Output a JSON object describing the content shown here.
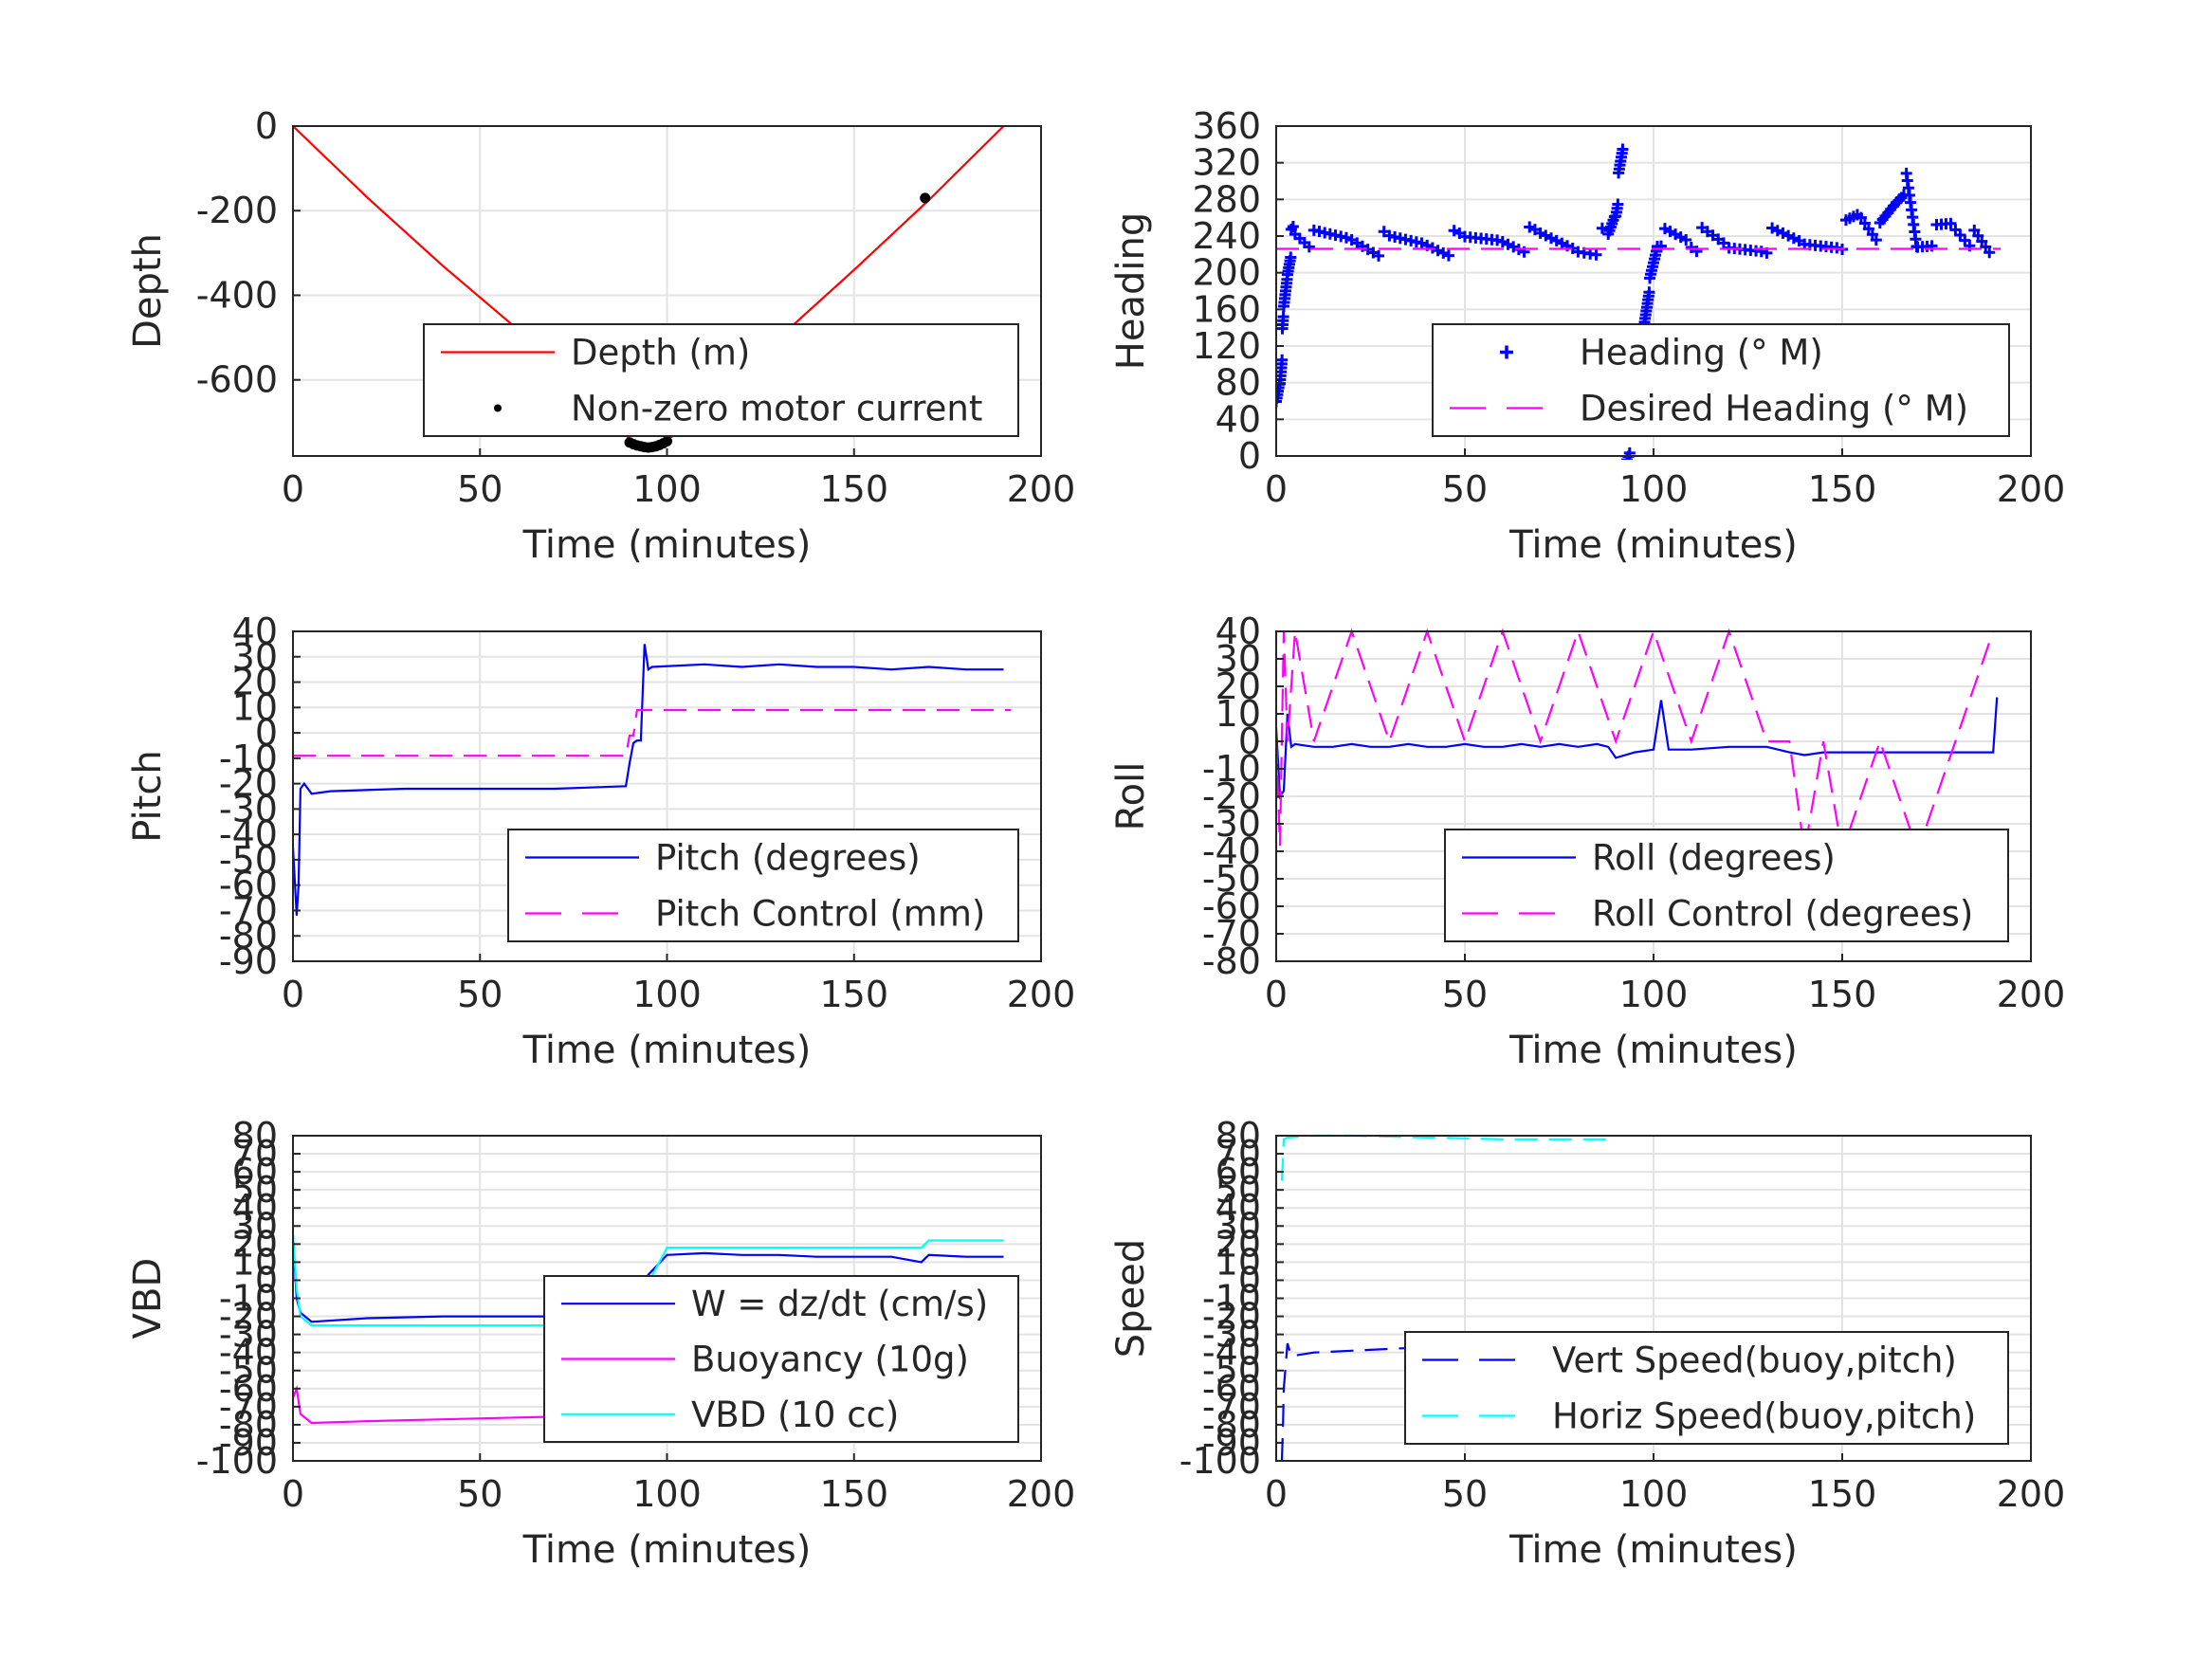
{
  "chart_data": [
    {
      "id": "depth",
      "type": "line",
      "xlabel": "Time (minutes)",
      "ylabel": "Depth",
      "xlim": [
        0,
        200
      ],
      "ylim": [
        -780,
        0
      ],
      "xticks": [
        0,
        50,
        100,
        150,
        200
      ],
      "yticks": [
        0,
        -200,
        -400,
        -600
      ],
      "grid": true,
      "legend": "bottom-right",
      "series": [
        {
          "name": "Depth (m)",
          "color": "#ff0000",
          "style": "solid",
          "x": [
            0,
            20,
            40,
            60,
            80,
            90,
            95,
            100,
            110,
            130,
            150,
            170,
            190
          ],
          "y": [
            0,
            -170,
            -330,
            -480,
            -640,
            -740,
            -760,
            -745,
            -660,
            -500,
            -340,
            -175,
            0
          ]
        },
        {
          "name": "Non-zero motor current",
          "color": "#000000",
          "style": "marker-dot",
          "x": [
            90,
            91,
            92,
            93,
            94,
            95,
            96,
            97,
            98,
            99,
            100,
            169
          ],
          "y": [
            -748,
            -752,
            -755,
            -757,
            -759,
            -760,
            -759,
            -757,
            -754,
            -750,
            -745,
            -170
          ]
        }
      ]
    },
    {
      "id": "heading",
      "type": "scatter",
      "xlabel": "Time (minutes)",
      "ylabel": "Heading",
      "xlim": [
        0,
        200
      ],
      "ylim": [
        0,
        360
      ],
      "xticks": [
        0,
        50,
        100,
        150,
        200
      ],
      "yticks": [
        0,
        40,
        80,
        120,
        160,
        200,
        240,
        280,
        320,
        360
      ],
      "grid": true,
      "legend": "bottom-right",
      "series": [
        {
          "name": "Heading (° M)",
          "color": "#0000ff",
          "style": "marker-plus",
          "x": [
            0,
            1,
            2,
            3,
            4,
            5,
            10,
            20,
            30,
            40,
            50,
            60,
            70,
            80,
            88,
            90,
            92,
            93,
            95,
            97,
            99,
            101,
            103,
            110,
            120,
            130,
            140,
            150,
            155,
            160,
            165,
            167,
            170,
            175,
            180,
            185,
            190
          ],
          "y": [
            45,
            80,
            150,
            200,
            235,
            245,
            235,
            240,
            230,
            235,
            230,
            240,
            235,
            230,
            235,
            270,
            340,
            5,
            40,
            110,
            190,
            240,
            245,
            240,
            225,
            235,
            230,
            240,
            260,
            240,
            280,
            295,
            230,
            240,
            250,
            235,
            215
          ]
        },
        {
          "name": "Desired Heading (° M)",
          "color": "#ff00ff",
          "style": "dashed",
          "x": [
            0,
            192
          ],
          "y": [
            226,
            226
          ]
        }
      ]
    },
    {
      "id": "pitch",
      "type": "line",
      "xlabel": "Time (minutes)",
      "ylabel": "Pitch",
      "xlim": [
        0,
        200
      ],
      "ylim": [
        -90,
        40
      ],
      "xticks": [
        0,
        50,
        100,
        150,
        200
      ],
      "yticks": [
        40,
        30,
        20,
        10,
        0,
        -10,
        -20,
        -30,
        -40,
        -50,
        -60,
        -70,
        -80,
        -90
      ],
      "grid": true,
      "legend": "bottom-right",
      "series": [
        {
          "name": "Pitch (degrees)",
          "color": "#0000ff",
          "style": "solid",
          "x": [
            0,
            1,
            1.5,
            2,
            3,
            5,
            10,
            30,
            50,
            70,
            89,
            90,
            91,
            92,
            93,
            94,
            95,
            96,
            110,
            120,
            130,
            140,
            150,
            160,
            170,
            180,
            190
          ],
          "y": [
            -45,
            -72,
            -60,
            -22,
            -20,
            -24,
            -23,
            -22,
            -22,
            -22,
            -21,
            -12,
            -4,
            -3,
            -3,
            35,
            25,
            26,
            27,
            26,
            27,
            26,
            26,
            25,
            26,
            25,
            25
          ]
        },
        {
          "name": "Pitch Control (mm)",
          "color": "#ff00ff",
          "style": "dashed",
          "x": [
            0,
            88,
            89,
            90,
            91,
            92,
            93,
            94,
            95,
            192
          ],
          "y": [
            -9,
            -9,
            -9,
            -1,
            -1,
            9,
            9,
            9,
            9,
            9
          ]
        }
      ]
    },
    {
      "id": "roll",
      "type": "line",
      "xlabel": "Time (minutes)",
      "ylabel": "Roll",
      "xlim": [
        0,
        200
      ],
      "ylim": [
        -80,
        40
      ],
      "xticks": [
        0,
        50,
        100,
        150,
        200
      ],
      "yticks": [
        40,
        30,
        20,
        10,
        0,
        -10,
        -20,
        -30,
        -40,
        -50,
        -60,
        -70,
        -80
      ],
      "grid": true,
      "legend": "bottom-right",
      "series": [
        {
          "name": "Roll (degrees)",
          "color": "#0000ff",
          "style": "solid",
          "x": [
            0,
            1,
            2,
            3,
            4,
            5,
            10,
            15,
            20,
            25,
            30,
            35,
            40,
            45,
            50,
            55,
            60,
            65,
            70,
            75,
            80,
            85,
            88,
            90,
            95,
            100,
            102,
            104,
            110,
            120,
            130,
            136,
            140,
            145,
            150,
            155,
            160,
            165,
            170,
            175,
            180,
            185,
            190,
            191
          ],
          "y": [
            5,
            -20,
            -18,
            10,
            -2,
            -1,
            -2,
            -2,
            -1,
            -2,
            -2,
            -1,
            -2,
            -2,
            -1,
            -2,
            -2,
            -1,
            -2,
            -1,
            -2,
            -1,
            -2,
            -6,
            -4,
            -3,
            15,
            -3,
            -3,
            -2,
            -2,
            -4,
            -5,
            -4,
            -4,
            -4,
            -4,
            -4,
            -4,
            -4,
            -4,
            -4,
            -4,
            16
          ]
        },
        {
          "name": "Roll Control (degrees)",
          "color": "#ff00ff",
          "style": "dashed",
          "x": [
            0,
            1,
            2,
            3,
            5,
            10,
            20,
            30,
            40,
            50,
            60,
            70,
            80,
            90,
            100,
            110,
            120,
            130,
            136,
            140,
            145,
            150,
            160,
            170,
            180,
            190
          ],
          "y": [
            0,
            -38,
            40,
            0,
            40,
            0,
            40,
            0,
            40,
            0,
            40,
            0,
            40,
            0,
            40,
            0,
            40,
            0,
            0,
            -40,
            0,
            -40,
            0,
            -40,
            0,
            40
          ]
        }
      ]
    },
    {
      "id": "vbd",
      "type": "line",
      "xlabel": "Time (minutes)",
      "ylabel": "VBD",
      "xlim": [
        0,
        200
      ],
      "ylim": [
        -100,
        80
      ],
      "xticks": [
        0,
        50,
        100,
        150,
        200
      ],
      "yticks": [
        80,
        70,
        60,
        50,
        40,
        30,
        20,
        10,
        0,
        -10,
        -20,
        -30,
        -40,
        -50,
        -60,
        -70,
        -80,
        -90,
        -100
      ],
      "grid": true,
      "legend": "bottom-right",
      "series": [
        {
          "name": "W = dz/dt (cm/s)",
          "color": "#0000ff",
          "style": "solid",
          "x": [
            0,
            1,
            2,
            5,
            20,
            40,
            60,
            80,
            89,
            90,
            95,
            100,
            110,
            120,
            130,
            140,
            150,
            160,
            168,
            170,
            180,
            190
          ],
          "y": [
            25,
            -10,
            -18,
            -23,
            -21,
            -20,
            -20,
            -20,
            -20,
            -13,
            3,
            14,
            15,
            14,
            14,
            13,
            13,
            13,
            10,
            14,
            13,
            13
          ]
        },
        {
          "name": "Buoyancy (10g)",
          "color": "#ff00ff",
          "style": "solid",
          "x": [
            0,
            1,
            2,
            5,
            20,
            40,
            60,
            80,
            90
          ],
          "y": [
            -65,
            -60,
            -74,
            -79,
            -78,
            -77,
            -76,
            -75,
            -75
          ]
        },
        {
          "name": "VBD (10 cc)",
          "color": "#00ffff",
          "style": "solid",
          "x": [
            0,
            1,
            2,
            5,
            20,
            40,
            60,
            80,
            89,
            100,
            120,
            140,
            160,
            168,
            170,
            190
          ],
          "y": [
            25,
            -5,
            -20,
            -25,
            -25,
            -25,
            -25,
            -25,
            -25,
            18,
            18,
            18,
            18,
            18,
            22,
            22
          ]
        }
      ]
    },
    {
      "id": "speed",
      "type": "line",
      "xlabel": "Time (minutes)",
      "ylabel": "Speed",
      "xlim": [
        0,
        200
      ],
      "ylim": [
        -100,
        80
      ],
      "xticks": [
        0,
        50,
        100,
        150,
        200
      ],
      "yticks": [
        80,
        70,
        60,
        50,
        40,
        30,
        20,
        10,
        0,
        -10,
        -20,
        -30,
        -40,
        -50,
        -60,
        -70,
        -80,
        -90,
        -100
      ],
      "grid": true,
      "legend": "bottom-right",
      "series": [
        {
          "name": "Vert Speed(buoy,pitch)",
          "color": "#0000ff",
          "style": "dashed",
          "x": [
            1.5,
            1.8,
            2,
            3,
            4,
            10,
            20,
            40,
            60,
            80,
            90
          ],
          "y": [
            -100,
            -80,
            -60,
            -35,
            -42,
            -40,
            -39,
            -37,
            -37,
            -36,
            -36
          ]
        },
        {
          "name": "Horiz Speed(buoy,pitch)",
          "color": "#00ffff",
          "style": "dashed",
          "x": [
            1.5,
            2,
            3,
            10,
            20,
            40,
            60,
            80,
            90
          ],
          "y": [
            55,
            78,
            79,
            80,
            80,
            79,
            78,
            78,
            78
          ]
        }
      ]
    }
  ]
}
